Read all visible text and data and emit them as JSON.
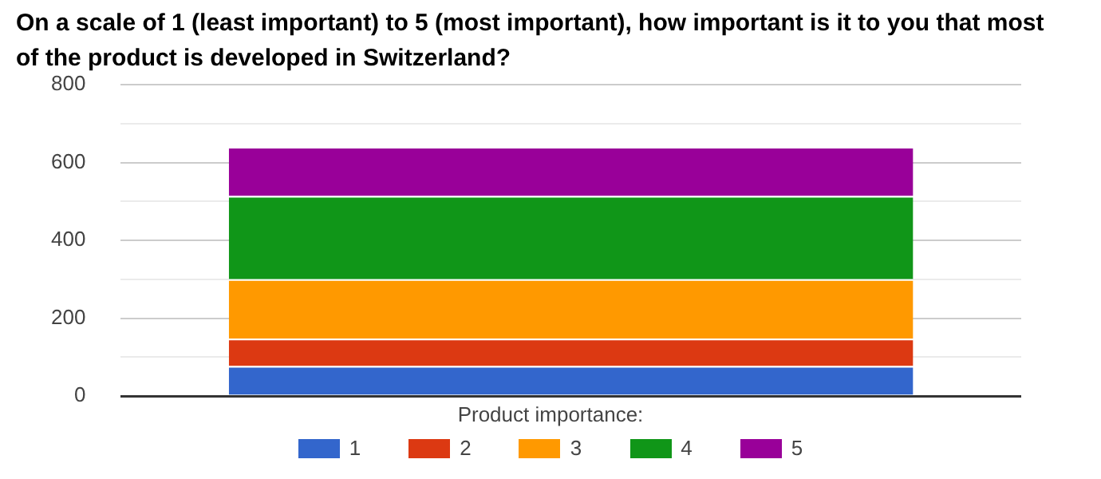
{
  "chart_data": {
    "type": "bar",
    "title": "On a scale of 1 (least important) to 5 (most important), how important is it to you that most of the product is developed in Switzerland?",
    "legend_title": "Product importance:",
    "categories": [
      null
    ],
    "stacked": true,
    "series": [
      {
        "name": "1",
        "color": "#3366cc",
        "values": [
          77
        ]
      },
      {
        "name": "2",
        "color": "#dc3912",
        "values": [
          70
        ]
      },
      {
        "name": "3",
        "color": "#ff9900",
        "values": [
          153
        ]
      },
      {
        "name": "4",
        "color": "#109618",
        "values": [
          214
        ]
      },
      {
        "name": "5",
        "color": "#990099",
        "values": [
          126
        ]
      }
    ],
    "ylim": [
      0,
      800
    ],
    "yticks": [
      0,
      {
        "value": 100,
        "label": null
      },
      200,
      {
        "value": 300,
        "label": null
      },
      400,
      {
        "value": 500,
        "label": null
      },
      600,
      {
        "value": 700,
        "label": null
      },
      800
    ],
    "grid": "y",
    "legend": "bottom"
  }
}
